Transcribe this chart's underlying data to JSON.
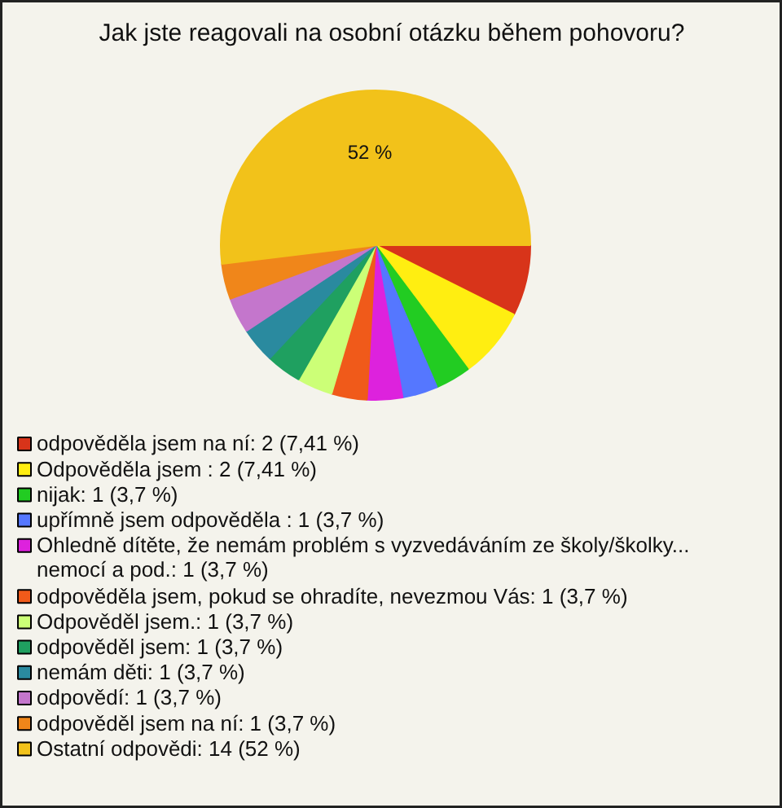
{
  "chart_data": {
    "type": "pie",
    "title": "Jak jste reagovali na osobní otázku během pohovoru?",
    "categories": [
      "odpověděla jsem na ní: 2 (7,41 %)",
      "Odpověděla jsem : 2 (7,41 %)",
      "nijak: 1 (3,7 %)",
      "upřímně jsem odpověděla : 1 (3,7 %)",
      "Ohledně dítěte, že nemám problém s vyzvedáváním ze školy/školky... nemocí a pod.: 1 (3,7 %)",
      "odpověděla jsem, pokud se ohradíte, nevezmou Vás: 1 (3,7 %)",
      "Odpověděl jsem.: 1 (3,7 %)",
      "odpověděl jsem: 1 (3,7 %)",
      "nemám děti: 1 (3,7 %)",
      "odpovědí: 1 (3,7 %)",
      "odpověděl jsem na ní: 1 (3,7 %)",
      "Ostatní odpovědi: 14 (52 %)"
    ],
    "values": [
      7.41,
      7.41,
      3.7,
      3.7,
      3.7,
      3.7,
      3.7,
      3.7,
      3.7,
      3.7,
      3.7,
      52
    ],
    "colors": [
      "#d8341a",
      "#ffee11",
      "#22cc22",
      "#5577ff",
      "#dd22dd",
      "#f05a1a",
      "#ccff77",
      "#1fa060",
      "#2a8a9f",
      "#c476cc",
      "#f0861a",
      "#f2c21a"
    ],
    "value_labels": [
      null,
      null,
      null,
      null,
      null,
      null,
      null,
      null,
      null,
      null,
      null,
      "52 %"
    ],
    "legend": "bottom"
  }
}
